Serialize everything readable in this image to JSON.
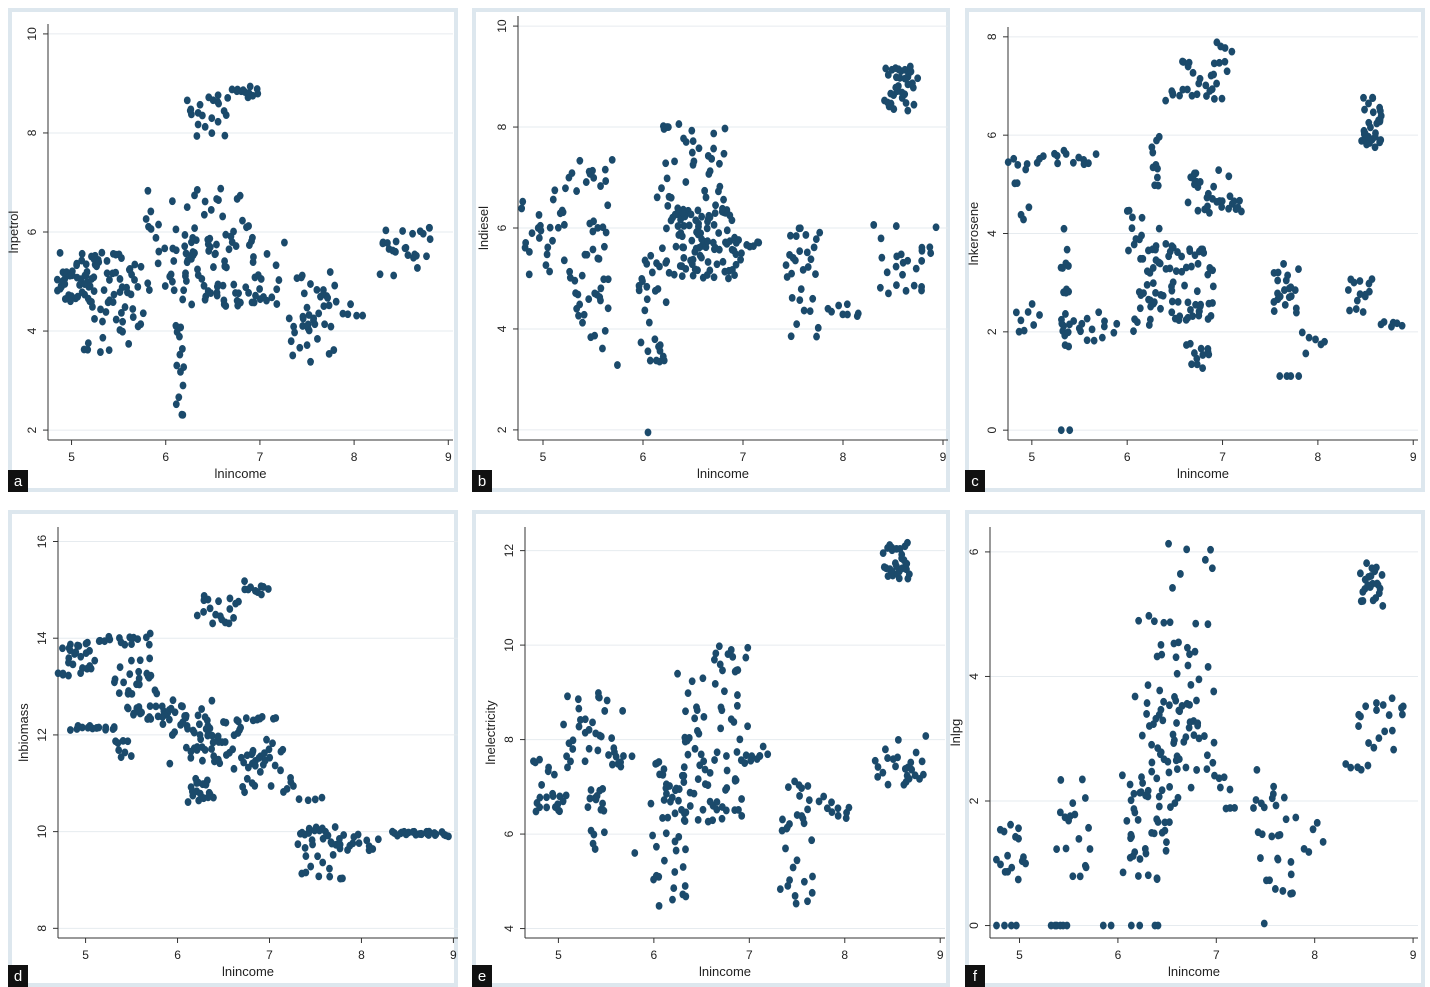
{
  "chart_data": [
    {
      "type": "scatter",
      "panel": "a",
      "xlabel": "lnincome",
      "ylabel": "lnpetrol",
      "xticks": [
        "5",
        "6",
        "7",
        "8",
        "9"
      ],
      "yticks": [
        "2",
        "4",
        "6",
        "8",
        "10"
      ],
      "xlim": [
        4.75,
        9.05
      ],
      "ylim": [
        1.8,
        10.2
      ],
      "grid": true,
      "clusters": [
        {
          "x": [
            4.8,
            5.7
          ],
          "y": [
            4.5,
            5.6
          ],
          "n": 55
        },
        {
          "x": [
            5.1,
            5.8
          ],
          "y": [
            3.4,
            4.6
          ],
          "n": 25
        },
        {
          "x": [
            4.8,
            5.3
          ],
          "y": [
            4.6,
            5.2
          ],
          "n": 20
        },
        {
          "x": [
            5.6,
            6.7
          ],
          "y": [
            4.8,
            6.9
          ],
          "n": 45
        },
        {
          "x": [
            6.0,
            7.3
          ],
          "y": [
            4.5,
            5.9
          ],
          "n": 70
        },
        {
          "x": [
            6.1,
            6.2
          ],
          "y": [
            2.3,
            4.5
          ],
          "n": 14
        },
        {
          "x": [
            6.2,
            6.7
          ],
          "y": [
            7.9,
            8.8
          ],
          "n": 22
        },
        {
          "x": [
            6.7,
            7.0
          ],
          "y": [
            8.7,
            8.95
          ],
          "n": 12
        },
        {
          "x": [
            6.6,
            6.9
          ],
          "y": [
            5.6,
            6.8
          ],
          "n": 10
        },
        {
          "x": [
            7.3,
            7.8
          ],
          "y": [
            3.3,
            5.2
          ],
          "n": 40
        },
        {
          "x": [
            7.8,
            8.1
          ],
          "y": [
            4.0,
            4.6
          ],
          "n": 6
        },
        {
          "x": [
            8.2,
            8.9
          ],
          "y": [
            5.1,
            6.1
          ],
          "n": 25
        }
      ]
    },
    {
      "type": "scatter",
      "panel": "b",
      "xlabel": "lnincome",
      "ylabel": "lndiesel",
      "xticks": [
        "5",
        "6",
        "7",
        "8",
        "9"
      ],
      "yticks": [
        "2",
        "4",
        "6",
        "8",
        "10"
      ],
      "xlim": [
        4.75,
        9.05
      ],
      "ylim": [
        1.8,
        10.2
      ],
      "grid": true,
      "clusters": [
        {
          "x": [
            4.75,
            5.3
          ],
          "y": [
            5.0,
            6.8
          ],
          "n": 28
        },
        {
          "x": [
            5.2,
            5.7
          ],
          "y": [
            6.7,
            7.4
          ],
          "n": 14
        },
        {
          "x": [
            5.3,
            5.7
          ],
          "y": [
            3.6,
            6.5
          ],
          "n": 35
        },
        {
          "x": [
            5.7,
            5.8
          ],
          "y": [
            3.2,
            3.3
          ],
          "n": 1
        },
        {
          "x": [
            5.95,
            6.25
          ],
          "y": [
            3.3,
            5.6
          ],
          "n": 30
        },
        {
          "x": [
            6.05,
            6.05
          ],
          "y": [
            1.95,
            1.95
          ],
          "n": 1
        },
        {
          "x": [
            6.1,
            6.9
          ],
          "y": [
            6.0,
            8.1
          ],
          "n": 45
        },
        {
          "x": [
            6.2,
            7.0
          ],
          "y": [
            5.0,
            6.4
          ],
          "n": 90
        },
        {
          "x": [
            6.9,
            7.2
          ],
          "y": [
            5.3,
            5.8
          ],
          "n": 8
        },
        {
          "x": [
            7.4,
            7.8
          ],
          "y": [
            3.8,
            6.0
          ],
          "n": 30
        },
        {
          "x": [
            7.8,
            8.2
          ],
          "y": [
            4.2,
            4.5
          ],
          "n": 8
        },
        {
          "x": [
            8.3,
            8.95
          ],
          "y": [
            4.7,
            6.1
          ],
          "n": 25
        },
        {
          "x": [
            8.4,
            8.75
          ],
          "y": [
            8.3,
            9.2
          ],
          "n": 35
        }
      ]
    },
    {
      "type": "scatter",
      "panel": "c",
      "xlabel": "lnincome",
      "ylabel": "lnkerosene",
      "xticks": [
        "5",
        "6",
        "7",
        "8",
        "9"
      ],
      "yticks": [
        "0",
        "2",
        "4",
        "6",
        "8"
      ],
      "xlim": [
        4.75,
        9.05
      ],
      "ylim": [
        -0.2,
        8.2
      ],
      "grid": true,
      "clusters": [
        {
          "x": [
            4.75,
            5.0
          ],
          "y": [
            4.2,
            5.8
          ],
          "n": 10
        },
        {
          "x": [
            5.0,
            5.7
          ],
          "y": [
            5.4,
            5.7
          ],
          "n": 14
        },
        {
          "x": [
            4.8,
            5.1
          ],
          "y": [
            2.0,
            2.6
          ],
          "n": 8
        },
        {
          "x": [
            5.3,
            5.4
          ],
          "y": [
            0.0,
            0.0
          ],
          "n": 2
        },
        {
          "x": [
            5.3,
            5.4
          ],
          "y": [
            1.4,
            4.1
          ],
          "n": 20
        },
        {
          "x": [
            5.4,
            5.9
          ],
          "y": [
            1.8,
            2.4
          ],
          "n": 14
        },
        {
          "x": [
            6.0,
            6.35
          ],
          "y": [
            2.0,
            4.5
          ],
          "n": 35
        },
        {
          "x": [
            6.25,
            6.35
          ],
          "y": [
            4.8,
            6.0
          ],
          "n": 10
        },
        {
          "x": [
            6.25,
            6.95
          ],
          "y": [
            2.2,
            3.8
          ],
          "n": 60
        },
        {
          "x": [
            6.6,
            6.9
          ],
          "y": [
            1.1,
            1.8
          ],
          "n": 12
        },
        {
          "x": [
            6.6,
            7.1
          ],
          "y": [
            4.4,
            5.3
          ],
          "n": 25
        },
        {
          "x": [
            7.1,
            7.2
          ],
          "y": [
            4.4,
            4.7
          ],
          "n": 6
        },
        {
          "x": [
            6.4,
            7.0
          ],
          "y": [
            6.7,
            7.5
          ],
          "n": 25
        },
        {
          "x": [
            6.9,
            7.1
          ],
          "y": [
            7.3,
            7.9
          ],
          "n": 8
        },
        {
          "x": [
            7.5,
            7.8
          ],
          "y": [
            2.3,
            3.5
          ],
          "n": 22
        },
        {
          "x": [
            7.6,
            7.8
          ],
          "y": [
            1.1,
            1.1
          ],
          "n": 4
        },
        {
          "x": [
            7.8,
            8.1
          ],
          "y": [
            1.5,
            2.0
          ],
          "n": 6
        },
        {
          "x": [
            8.3,
            8.6
          ],
          "y": [
            2.4,
            3.1
          ],
          "n": 14
        },
        {
          "x": [
            8.65,
            8.9
          ],
          "y": [
            2.1,
            2.2
          ],
          "n": 6
        },
        {
          "x": [
            8.45,
            8.7
          ],
          "y": [
            5.7,
            6.8
          ],
          "n": 30
        }
      ]
    },
    {
      "type": "scatter",
      "panel": "d",
      "xlabel": "lnincome",
      "ylabel": "lnbiomass",
      "xticks": [
        "5",
        "6",
        "7",
        "8",
        "9"
      ],
      "yticks": [
        "8",
        "10",
        "12",
        "14",
        "16"
      ],
      "xlim": [
        4.7,
        9.05
      ],
      "ylim": [
        7.8,
        16.3
      ],
      "grid": true,
      "clusters": [
        {
          "x": [
            4.7,
            5.1
          ],
          "y": [
            13.2,
            13.9
          ],
          "n": 25
        },
        {
          "x": [
            5.0,
            5.8
          ],
          "y": [
            13.8,
            14.1
          ],
          "n": 16
        },
        {
          "x": [
            4.8,
            5.4
          ],
          "y": [
            12.1,
            12.2
          ],
          "n": 14
        },
        {
          "x": [
            5.3,
            5.8
          ],
          "y": [
            12.8,
            13.6
          ],
          "n": 22
        },
        {
          "x": [
            5.3,
            5.5
          ],
          "y": [
            11.4,
            11.9
          ],
          "n": 8
        },
        {
          "x": [
            5.4,
            6.0
          ],
          "y": [
            12.3,
            12.6
          ],
          "n": 22
        },
        {
          "x": [
            5.8,
            6.4
          ],
          "y": [
            11.4,
            12.9
          ],
          "n": 25
        },
        {
          "x": [
            6.1,
            6.4
          ],
          "y": [
            10.6,
            11.1
          ],
          "n": 20
        },
        {
          "x": [
            6.0,
            7.2
          ],
          "y": [
            11.4,
            12.4
          ],
          "n": 65
        },
        {
          "x": [
            6.6,
            7.3
          ],
          "y": [
            10.8,
            11.4
          ],
          "n": 18
        },
        {
          "x": [
            7.3,
            7.6
          ],
          "y": [
            10.6,
            10.9
          ],
          "n": 4
        },
        {
          "x": [
            6.2,
            6.7
          ],
          "y": [
            14.3,
            14.9
          ],
          "n": 18
        },
        {
          "x": [
            6.7,
            7.0
          ],
          "y": [
            14.9,
            15.2
          ],
          "n": 10
        },
        {
          "x": [
            7.3,
            7.8
          ],
          "y": [
            9.0,
            10.1
          ],
          "n": 35
        },
        {
          "x": [
            7.7,
            8.2
          ],
          "y": [
            9.6,
            9.95
          ],
          "n": 14
        },
        {
          "x": [
            8.3,
            9.0
          ],
          "y": [
            9.9,
            10.0
          ],
          "n": 25
        }
      ]
    },
    {
      "type": "scatter",
      "panel": "e",
      "xlabel": "lnincome",
      "ylabel": "lnelectricity",
      "xticks": [
        "5",
        "6",
        "7",
        "8",
        "9"
      ],
      "yticks": [
        "4",
        "6",
        "8",
        "10",
        "12"
      ],
      "xlim": [
        4.65,
        9.05
      ],
      "ylim": [
        3.8,
        12.5
      ],
      "grid": true,
      "clusters": [
        {
          "x": [
            4.7,
            5.1
          ],
          "y": [
            6.4,
            7.6
          ],
          "n": 22
        },
        {
          "x": [
            5.0,
            5.7
          ],
          "y": [
            7.4,
            9.0
          ],
          "n": 35
        },
        {
          "x": [
            5.3,
            5.5
          ],
          "y": [
            5.6,
            7.0
          ],
          "n": 16
        },
        {
          "x": [
            5.5,
            5.8
          ],
          "y": [
            7.6,
            7.7
          ],
          "n": 4
        },
        {
          "x": [
            5.8,
            5.8
          ],
          "y": [
            5.6,
            5.6
          ],
          "n": 1
        },
        {
          "x": [
            5.95,
            6.4
          ],
          "y": [
            4.2,
            8.0
          ],
          "n": 45
        },
        {
          "x": [
            6.2,
            7.0
          ],
          "y": [
            6.2,
            9.5
          ],
          "n": 70
        },
        {
          "x": [
            6.6,
            7.0
          ],
          "y": [
            9.3,
            10.1
          ],
          "n": 12
        },
        {
          "x": [
            6.9,
            7.2
          ],
          "y": [
            7.5,
            7.9
          ],
          "n": 10
        },
        {
          "x": [
            7.3,
            7.7
          ],
          "y": [
            4.5,
            7.2
          ],
          "n": 30
        },
        {
          "x": [
            7.7,
            8.1
          ],
          "y": [
            6.3,
            6.8
          ],
          "n": 10
        },
        {
          "x": [
            8.3,
            8.9
          ],
          "y": [
            7.0,
            8.1
          ],
          "n": 25
        },
        {
          "x": [
            8.4,
            8.7
          ],
          "y": [
            11.4,
            12.2
          ],
          "n": 30
        }
      ]
    },
    {
      "type": "scatter",
      "panel": "f",
      "xlabel": "lnincome",
      "ylabel": "lnlpg",
      "xticks": [
        "5",
        "6",
        "7",
        "8",
        "9"
      ],
      "yticks": [
        "0",
        "2",
        "4",
        "6"
      ],
      "xlim": [
        4.7,
        9.05
      ],
      "ylim": [
        -0.2,
        6.4
      ],
      "grid": true,
      "clusters": [
        {
          "x": [
            4.75,
            5.0
          ],
          "y": [
            0.0,
            0.0
          ],
          "n": 4
        },
        {
          "x": [
            4.75,
            5.1
          ],
          "y": [
            0.7,
            1.8
          ],
          "n": 16
        },
        {
          "x": [
            5.3,
            5.5
          ],
          "y": [
            0.0,
            0.0
          ],
          "n": 6
        },
        {
          "x": [
            5.35,
            5.75
          ],
          "y": [
            0.7,
            2.4
          ],
          "n": 18
        },
        {
          "x": [
            5.8,
            6.5
          ],
          "y": [
            0.0,
            0.0
          ],
          "n": 6
        },
        {
          "x": [
            6.0,
            6.6
          ],
          "y": [
            0.7,
            2.5
          ],
          "n": 40
        },
        {
          "x": [
            6.15,
            6.8
          ],
          "y": [
            2.0,
            5.0
          ],
          "n": 60
        },
        {
          "x": [
            6.5,
            7.0
          ],
          "y": [
            3.0,
            6.2
          ],
          "n": 25
        },
        {
          "x": [
            6.8,
            7.2
          ],
          "y": [
            1.8,
            3.2
          ],
          "n": 15
        },
        {
          "x": [
            7.35,
            7.8
          ],
          "y": [
            0.0,
            2.5
          ],
          "n": 28
        },
        {
          "x": [
            7.8,
            8.1
          ],
          "y": [
            1.1,
            1.8
          ],
          "n": 6
        },
        {
          "x": [
            8.3,
            8.55
          ],
          "y": [
            2.5,
            2.6
          ],
          "n": 5
        },
        {
          "x": [
            8.4,
            8.95
          ],
          "y": [
            2.8,
            3.7
          ],
          "n": 18
        },
        {
          "x": [
            8.45,
            8.7
          ],
          "y": [
            5.1,
            5.9
          ],
          "n": 25
        }
      ]
    }
  ],
  "panels": [
    {
      "label": "a",
      "xlabel": "lnincome",
      "ylabel": "lnpetrol"
    },
    {
      "label": "b",
      "xlabel": "lnincome",
      "ylabel": "lndiesel"
    },
    {
      "label": "c",
      "xlabel": "lnincome",
      "ylabel": "lnkerosene"
    },
    {
      "label": "d",
      "xlabel": "lnincome",
      "ylabel": "lnbiomass"
    },
    {
      "label": "e",
      "xlabel": "lnincome",
      "ylabel": "lnelectricity"
    },
    {
      "label": "f",
      "xlabel": "lnincome",
      "ylabel": "lnlpg"
    }
  ],
  "colors": {
    "marker": "#1b4a6b",
    "panel_border": "#dde7ee",
    "label_box": "#111111"
  }
}
